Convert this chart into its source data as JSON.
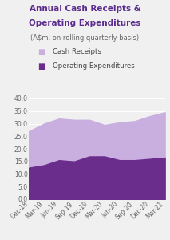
{
  "title_line1": "Annual Cash Receipts &",
  "title_line2": "Operating Expenditures",
  "subtitle": "(A$m, on rolling quarterly basis)",
  "legend_labels": [
    "Cash Receipts",
    "Operating Expenditures"
  ],
  "x_labels": [
    "Dec-18",
    "Mar-19",
    "Jun-19",
    "Sep-19",
    "Dec-19",
    "Mar-20",
    "Jun-20",
    "Sep-20",
    "Dec-20",
    "Mar-21"
  ],
  "cash_receipts": [
    27.0,
    30.0,
    32.0,
    31.5,
    31.5,
    29.5,
    30.5,
    31.0,
    33.0,
    34.5
  ],
  "operating_expenditures": [
    12.5,
    13.5,
    15.5,
    15.0,
    17.0,
    17.0,
    15.5,
    15.5,
    16.0,
    16.5
  ],
  "color_cash_receipts": "#C9AEE0",
  "color_opex": "#6B2D8B",
  "ylim": [
    0,
    40
  ],
  "yticks": [
    0.0,
    5.0,
    10.0,
    15.0,
    20.0,
    25.0,
    30.0,
    35.0,
    40.0
  ],
  "background_color": "#F0F0F0",
  "title_color": "#5B2C8D",
  "title_fontsize": 7.5,
  "subtitle_fontsize": 6.0,
  "legend_fontsize": 6.2,
  "tick_fontsize": 5.5,
  "label_color": "#666666"
}
